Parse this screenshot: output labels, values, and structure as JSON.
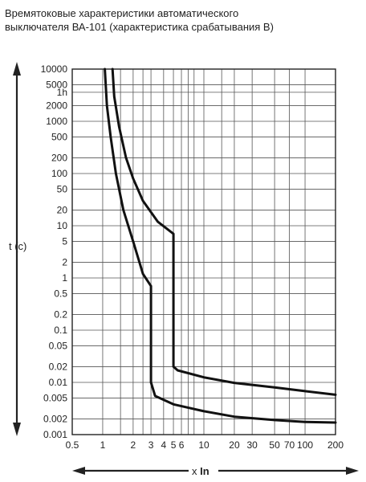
{
  "chart_data": {
    "type": "line",
    "title_lines": [
      "Времятоковые характеристики автоматического",
      "выключателя ВА-101 (характеристика срабатывания B)"
    ],
    "xlabel_prefix": "x ",
    "xlabel_bold": "In",
    "ylabel": "t (c)",
    "x_scale": "log",
    "y_scale": "log",
    "xlim": [
      0.5,
      200
    ],
    "ylim": [
      0.001,
      10000
    ],
    "grid": true,
    "x_ticks": [
      {
        "value": 0.5,
        "label": "0.5"
      },
      {
        "value": 1,
        "label": "1"
      },
      {
        "value": 2,
        "label": "2"
      },
      {
        "value": 3,
        "label": "3"
      },
      {
        "value": 4,
        "label": "4"
      },
      {
        "value": 5,
        "label": "5"
      },
      {
        "value": 6,
        "label": "6"
      },
      {
        "value": 10,
        "label": "10"
      },
      {
        "value": 20,
        "label": "20"
      },
      {
        "value": 30,
        "label": "30"
      },
      {
        "value": 50,
        "label": "50"
      },
      {
        "value": 70,
        "label": "70"
      },
      {
        "value": 100,
        "label": "100"
      },
      {
        "value": 200,
        "label": "200"
      }
    ],
    "x_gridlines": [
      0.5,
      1,
      1.5,
      2,
      2.5,
      3,
      4,
      5,
      6,
      7,
      8,
      10,
      15,
      20,
      30,
      50,
      70,
      100,
      200
    ],
    "y_ticks": [
      {
        "value": 10000,
        "label": "10000"
      },
      {
        "value": 5000,
        "label": "5000"
      },
      {
        "value": 3600,
        "label": "1h"
      },
      {
        "value": 2000,
        "label": "2000"
      },
      {
        "value": 1000,
        "label": "1000"
      },
      {
        "value": 500,
        "label": "500"
      },
      {
        "value": 200,
        "label": "200"
      },
      {
        "value": 100,
        "label": "100"
      },
      {
        "value": 50,
        "label": "50"
      },
      {
        "value": 20,
        "label": "20"
      },
      {
        "value": 10,
        "label": "10"
      },
      {
        "value": 5,
        "label": "5"
      },
      {
        "value": 2,
        "label": "2"
      },
      {
        "value": 1,
        "label": "1"
      },
      {
        "value": 0.5,
        "label": "0.5"
      },
      {
        "value": 0.2,
        "label": "0.2"
      },
      {
        "value": 0.1,
        "label": "0.1"
      },
      {
        "value": 0.05,
        "label": "0.05"
      },
      {
        "value": 0.02,
        "label": "0.02"
      },
      {
        "value": 0.01,
        "label": "0.01"
      },
      {
        "value": 0.005,
        "label": "0.005"
      },
      {
        "value": 0.002,
        "label": "0.002"
      },
      {
        "value": 0.001,
        "label": "0.001"
      }
    ],
    "series": [
      {
        "points": [
          [
            1.05,
            10000
          ],
          [
            1.1,
            2000
          ],
          [
            1.2,
            500
          ],
          [
            1.35,
            100
          ],
          [
            1.6,
            20
          ],
          [
            2.0,
            5
          ],
          [
            2.5,
            1.2
          ],
          [
            3.0,
            0.7
          ],
          [
            3.0,
            0.01
          ],
          [
            3.3,
            0.0055
          ],
          [
            5.0,
            0.0038
          ],
          [
            10,
            0.0028
          ],
          [
            20,
            0.0022
          ],
          [
            50,
            0.0019
          ],
          [
            100,
            0.00175
          ],
          [
            200,
            0.0017
          ]
        ]
      },
      {
        "points": [
          [
            1.25,
            10000
          ],
          [
            1.3,
            3000
          ],
          [
            1.45,
            800
          ],
          [
            1.7,
            200
          ],
          [
            2.0,
            80
          ],
          [
            2.5,
            30
          ],
          [
            3.5,
            12
          ],
          [
            5.0,
            7
          ],
          [
            5.0,
            0.02
          ],
          [
            5.5,
            0.017
          ],
          [
            10,
            0.0125
          ],
          [
            20,
            0.0098
          ],
          [
            50,
            0.008
          ],
          [
            100,
            0.0068
          ],
          [
            200,
            0.0058
          ]
        ]
      }
    ]
  }
}
